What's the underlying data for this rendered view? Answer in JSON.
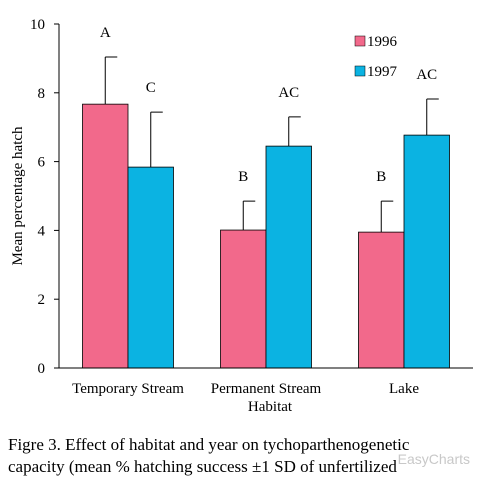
{
  "chart_data": {
    "type": "bar",
    "y_label": "Mean percentage hatch",
    "x_label": "Habitat",
    "categories": [
      "Temporary Stream",
      "Permanent Stream",
      "Lake"
    ],
    "series": [
      {
        "name": "1996",
        "color": "#f2698b",
        "values": [
          7.67,
          4.01,
          3.95
        ],
        "errors": [
          1.37,
          0.84,
          0.9
        ],
        "letters": [
          "A",
          "B",
          "B"
        ]
      },
      {
        "name": "1997",
        "color": "#0bb3e2",
        "values": [
          5.84,
          6.45,
          6.77
        ],
        "errors": [
          1.6,
          0.85,
          1.05
        ],
        "letters": [
          "C",
          "AC",
          "AC"
        ]
      }
    ],
    "ylim": [
      0,
      10
    ],
    "yticks": [
      0,
      2,
      4,
      6,
      8,
      10
    ],
    "caption": [
      "Figre 3. Effect of habitat and year on tychoparthenogenetic",
      "capacity (mean % hatching success ±1 SD of unfertilized"
    ],
    "watermark": "EasyCharts"
  }
}
